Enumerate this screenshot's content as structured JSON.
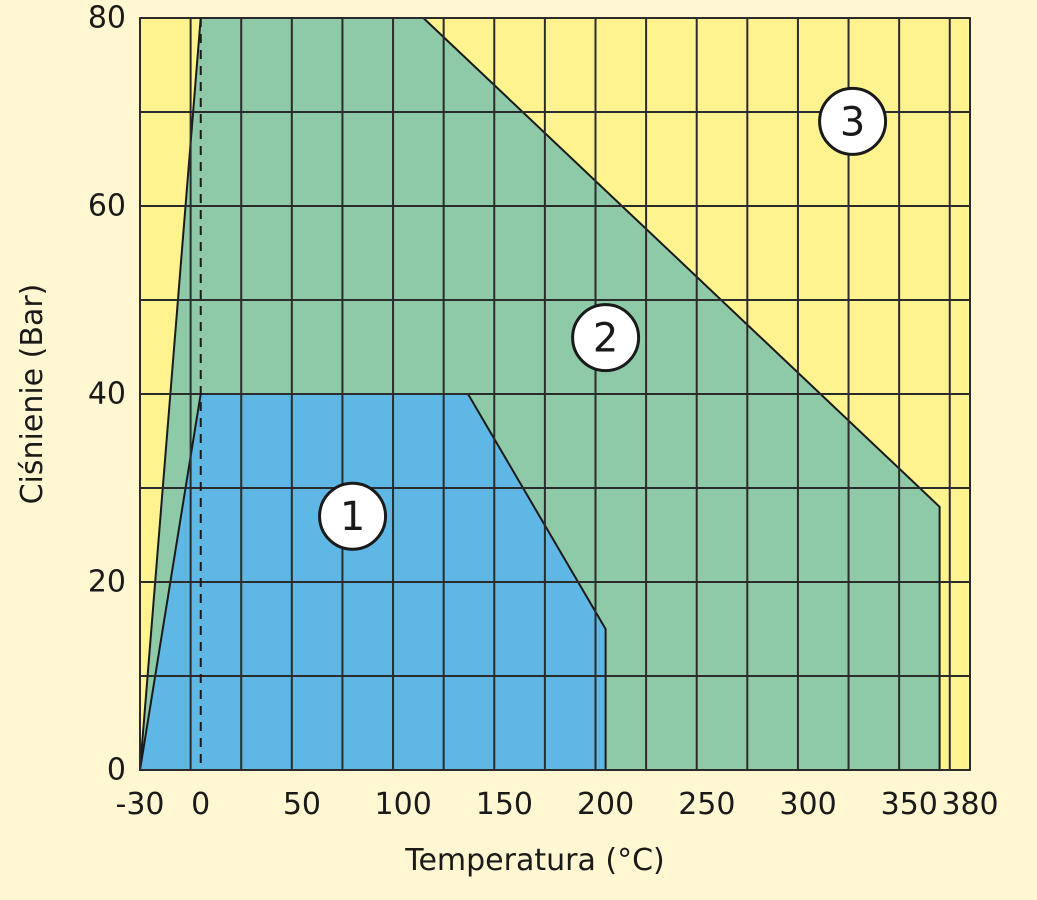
{
  "chart_data": {
    "type": "area",
    "title": "",
    "xlabel": "Temperatura (°C)",
    "ylabel": "Ciśnienie (Bar)",
    "xlim": [
      -30,
      380
    ],
    "ylim": [
      0,
      80
    ],
    "x_ticks": [
      -30,
      0,
      50,
      100,
      150,
      200,
      250,
      300,
      350,
      380
    ],
    "y_ticks": [
      0,
      20,
      40,
      60,
      80
    ],
    "grid": true,
    "reference_line": {
      "x": 0,
      "style": "dashed"
    },
    "colors": {
      "plot_background": "#fff390",
      "zone_1": "#5fb7e6",
      "zone_2": "#8ecaa8",
      "zone_3": "#fff390",
      "grid": "#2b2b2b"
    },
    "series": [
      {
        "label": "3",
        "label_at": [
          322,
          69
        ],
        "points": [
          [
            -30,
            0
          ],
          [
            -30,
            80
          ],
          [
            380,
            80
          ],
          [
            380,
            0
          ]
        ]
      },
      {
        "label": "2",
        "label_at": [
          200,
          46
        ],
        "points": [
          [
            -30,
            0
          ],
          [
            0,
            80
          ],
          [
            110,
            80
          ],
          [
            365,
            28
          ],
          [
            365,
            0
          ]
        ]
      },
      {
        "label": "1",
        "label_at": [
          75,
          27
        ],
        "points": [
          [
            -30,
            0
          ],
          [
            0,
            40
          ],
          [
            132,
            40
          ],
          [
            200,
            15
          ],
          [
            200,
            0
          ]
        ]
      }
    ]
  }
}
